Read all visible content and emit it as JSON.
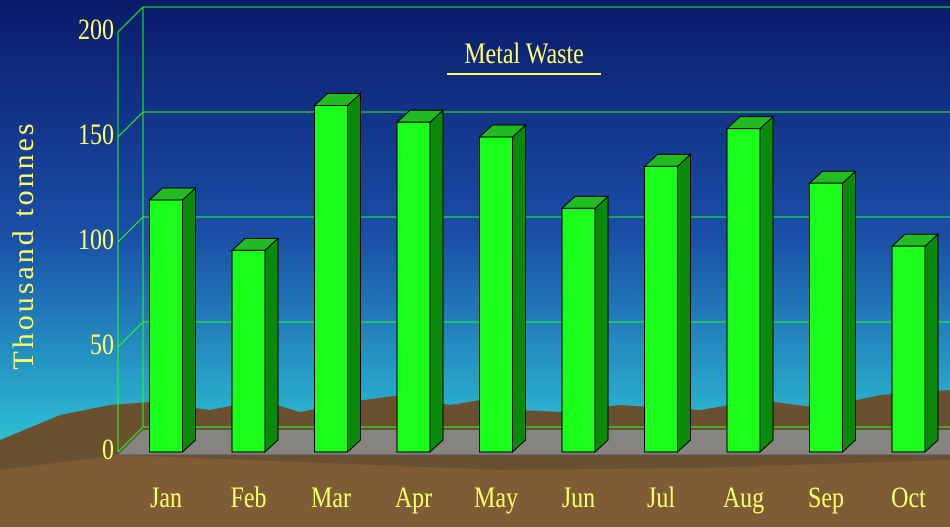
{
  "chart_data": {
    "type": "bar3d",
    "title": "Metal Waste",
    "ylabel": "Thousand tonnes",
    "categories": [
      "Jan",
      "Feb",
      "Mar",
      "Apr",
      "May",
      "Jun",
      "Jul",
      "Aug",
      "Sep",
      "Oct"
    ],
    "values": [
      120,
      96,
      165,
      157,
      150,
      116,
      136,
      154,
      128,
      98
    ],
    "color": "#1aff1a",
    "ylim": [
      0,
      200
    ],
    "yticks": [
      0,
      50,
      100,
      150,
      200
    ],
    "grid": true
  }
}
